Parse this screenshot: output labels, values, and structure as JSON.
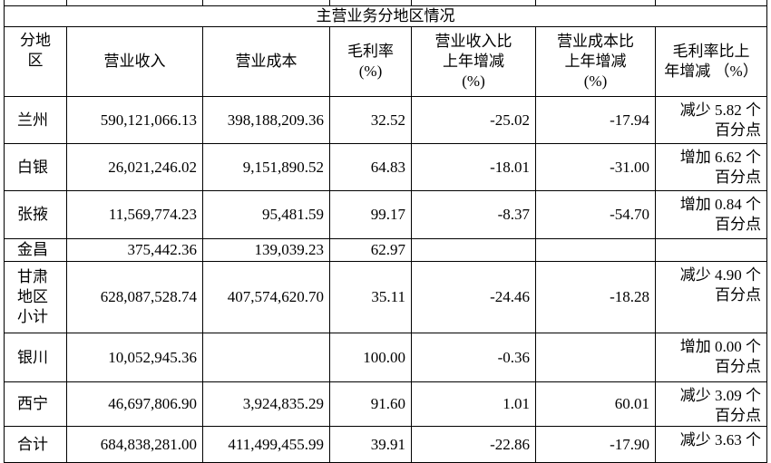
{
  "table": {
    "title": "主营业务分地区情况",
    "header": [
      [
        "分地",
        "区"
      ],
      [
        "营业收入"
      ],
      [
        "营业成本"
      ],
      [
        "毛利率",
        "(%)"
      ],
      [
        "营业收入比",
        "上年增减",
        "(%)"
      ],
      [
        "营业成本比",
        "上年增减",
        "(%)"
      ],
      [
        "毛利率比上",
        "年增减 （%）"
      ]
    ],
    "rows": [
      [
        [
          "兰州"
        ],
        "590,121,066.13",
        "398,188,209.36",
        "32.52",
        "-25.02",
        "-17.94",
        [
          "减少 5.82 个",
          "百分点"
        ]
      ],
      [
        [
          "白银"
        ],
        "26,021,246.02",
        "9,151,890.52",
        "64.83",
        "-18.01",
        "-31.00",
        [
          "增加 6.62 个",
          "百分点"
        ]
      ],
      [
        [
          "张掖"
        ],
        "11,569,774.23",
        "95,481.59",
        "99.17",
        "-8.37",
        "-54.70",
        [
          "增加 0.84 个",
          "百分点"
        ]
      ],
      [
        [
          "金昌"
        ],
        "375,442.36",
        "139,039.23",
        "62.97",
        null,
        null,
        null
      ],
      [
        [
          "甘肃",
          "地区",
          "小计"
        ],
        "628,087,528.74",
        "407,574,620.70",
        "35.11",
        "-24.46",
        "-18.28",
        [
          "减少 4.90 个",
          "百分点"
        ]
      ],
      [
        [
          "银川"
        ],
        "10,052,945.36",
        null,
        "100.00",
        "-0.36",
        null,
        [
          "增加 0.00 个",
          "百分点"
        ]
      ],
      [
        [
          "西宁"
        ],
        "46,697,806.90",
        "3,924,835.29",
        "91.60",
        "1.01",
        "60.01",
        [
          "减少 3.09 个",
          "百分点"
        ]
      ],
      [
        [
          "合计"
        ],
        "684,838,281.00",
        "411,499,455.99",
        "39.91",
        "-22.86",
        "-17.90",
        [
          "减少 3.63 个"
        ]
      ]
    ]
  }
}
